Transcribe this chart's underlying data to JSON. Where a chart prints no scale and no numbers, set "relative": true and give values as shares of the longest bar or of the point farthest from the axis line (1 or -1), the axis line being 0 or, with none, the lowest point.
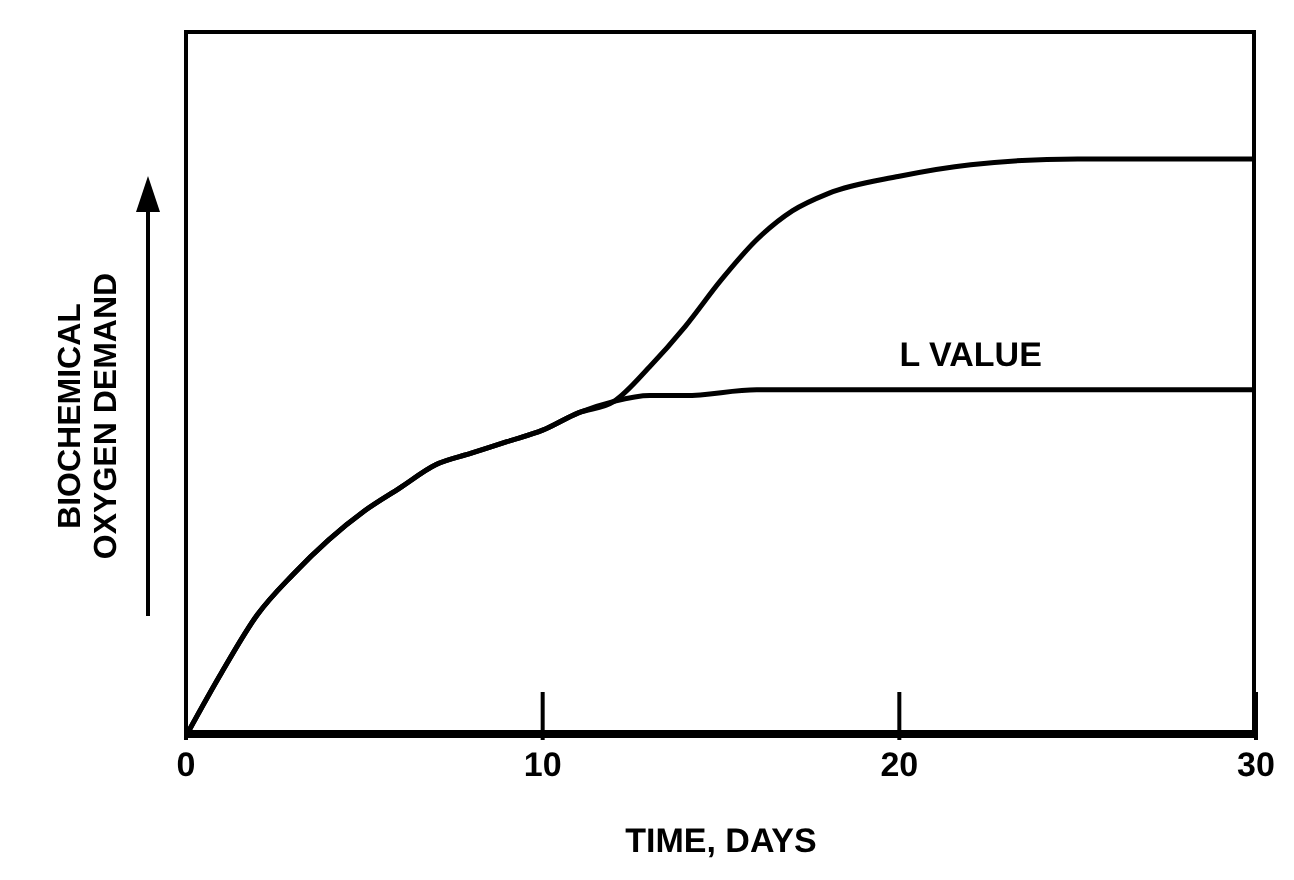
{
  "chart_data": {
    "type": "line",
    "relative": true,
    "xlabel": "TIME, DAYS",
    "ylabel": "BIOCHEMICAL OXYGEN DEMAND",
    "xlim": [
      0,
      30
    ],
    "xticks": [
      0,
      10,
      20,
      30
    ],
    "legend": false,
    "marker": "none",
    "line_style": "solid",
    "annotations": [
      {
        "text": "L VALUE",
        "x": 22,
        "y": 0.6
      }
    ],
    "series": [
      {
        "color": "#000000",
        "x": [
          0,
          1,
          2,
          3,
          4,
          5,
          6,
          7,
          8,
          9,
          10,
          11,
          12,
          13,
          14,
          15,
          16,
          17,
          18,
          20,
          22,
          25,
          30
        ],
        "values": [
          0,
          0.11,
          0.21,
          0.28,
          0.34,
          0.39,
          0.43,
          0.47,
          0.49,
          0.51,
          0.53,
          0.56,
          0.58,
          0.64,
          0.71,
          0.79,
          0.86,
          0.91,
          0.94,
          0.97,
          0.99,
          1,
          1
        ]
      },
      {
        "color": "#000000",
        "x": [
          0,
          1,
          2,
          3,
          4,
          5,
          6,
          7,
          8,
          9,
          10,
          11,
          12,
          13,
          14,
          16,
          20,
          30
        ],
        "values": [
          0,
          0.11,
          0.21,
          0.28,
          0.34,
          0.39,
          0.43,
          0.47,
          0.49,
          0.51,
          0.53,
          0.56,
          0.58,
          0.59,
          0.59,
          0.6,
          0.6,
          0.6
        ]
      }
    ]
  }
}
